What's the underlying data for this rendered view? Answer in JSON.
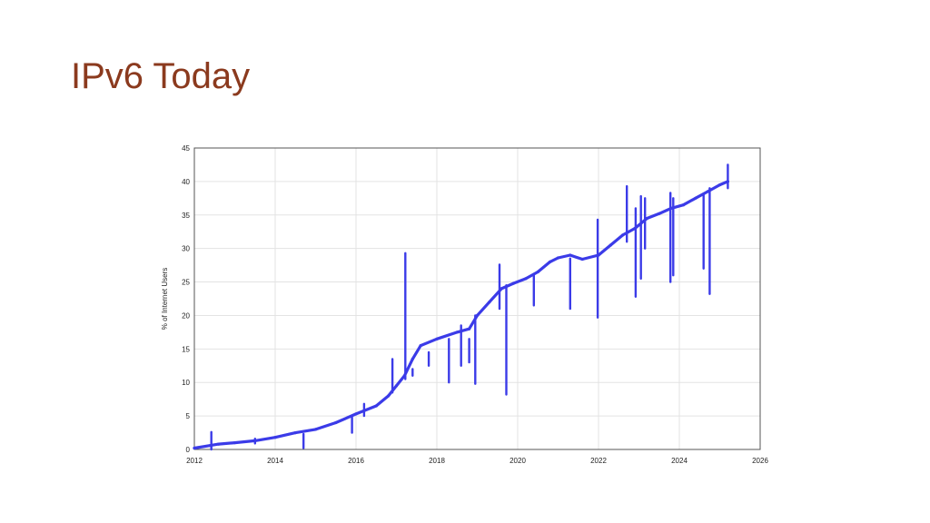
{
  "slide": {
    "title": "IPv6 Today"
  },
  "chart_data": {
    "type": "line",
    "title": "",
    "xlabel": "",
    "ylabel": "% of Internet Users",
    "xlim": [
      2012,
      2026
    ],
    "ylim": [
      0,
      45
    ],
    "xticks": [
      "2012",
      "2014",
      "2016",
      "2018",
      "2020",
      "2022",
      "2024",
      "2026"
    ],
    "yticks": [
      "0",
      "5",
      "10",
      "15",
      "20",
      "25",
      "30",
      "35",
      "40",
      "45"
    ],
    "grid": true,
    "line_color": "#3b3be8",
    "series": [
      {
        "name": "",
        "points": [
          [
            2012.0,
            0.2
          ],
          [
            2012.4,
            0.6
          ],
          [
            2012.6,
            0.8
          ],
          [
            2013.0,
            1.0
          ],
          [
            2013.5,
            1.3
          ],
          [
            2014.0,
            1.8
          ],
          [
            2014.5,
            2.5
          ],
          [
            2015.0,
            3.0
          ],
          [
            2015.5,
            4.0
          ],
          [
            2016.0,
            5.3
          ],
          [
            2016.5,
            6.5
          ],
          [
            2016.8,
            8.0
          ],
          [
            2017.0,
            9.5
          ],
          [
            2017.2,
            11.0
          ],
          [
            2017.4,
            13.5
          ],
          [
            2017.6,
            15.5
          ],
          [
            2018.0,
            16.5
          ],
          [
            2018.5,
            17.5
          ],
          [
            2018.8,
            18.0
          ],
          [
            2019.0,
            20.0
          ],
          [
            2019.3,
            22.0
          ],
          [
            2019.6,
            24.0
          ],
          [
            2019.9,
            24.8
          ],
          [
            2020.2,
            25.5
          ],
          [
            2020.5,
            26.5
          ],
          [
            2020.8,
            28.0
          ],
          [
            2021.0,
            28.6
          ],
          [
            2021.3,
            29.0
          ],
          [
            2021.6,
            28.4
          ],
          [
            2022.0,
            29.0
          ],
          [
            2022.3,
            30.5
          ],
          [
            2022.6,
            32.0
          ],
          [
            2022.9,
            33.0
          ],
          [
            2023.2,
            34.5
          ],
          [
            2023.5,
            35.2
          ],
          [
            2023.8,
            36.0
          ],
          [
            2024.1,
            36.5
          ],
          [
            2024.4,
            37.5
          ],
          [
            2024.7,
            38.5
          ],
          [
            2025.0,
            39.5
          ],
          [
            2025.2,
            40.0
          ]
        ],
        "spikes": [
          [
            2012.42,
            2.6,
            0.0
          ],
          [
            2013.5,
            1.6,
            0.9
          ],
          [
            2014.7,
            2.3,
            0.2
          ],
          [
            2015.9,
            4.8,
            2.5
          ],
          [
            2016.2,
            6.8,
            5.0
          ],
          [
            2016.9,
            13.5,
            8.5
          ],
          [
            2017.22,
            29.3,
            10.5
          ],
          [
            2017.4,
            12.0,
            11.0
          ],
          [
            2017.8,
            14.5,
            12.5
          ],
          [
            2018.3,
            16.5,
            10.0
          ],
          [
            2018.6,
            18.5,
            12.5
          ],
          [
            2018.8,
            16.5,
            13.0
          ],
          [
            2018.95,
            20.0,
            9.8
          ],
          [
            2019.55,
            27.6,
            21.0
          ],
          [
            2019.72,
            24.5,
            8.2
          ],
          [
            2020.4,
            26.0,
            21.5
          ],
          [
            2021.3,
            28.5,
            21.0
          ],
          [
            2021.98,
            34.3,
            19.7
          ],
          [
            2022.7,
            39.3,
            31.0
          ],
          [
            2022.92,
            36.0,
            22.8
          ],
          [
            2023.05,
            37.8,
            25.5
          ],
          [
            2023.15,
            37.5,
            30.0
          ],
          [
            2023.78,
            38.3,
            25.0
          ],
          [
            2023.85,
            37.5,
            26.0
          ],
          [
            2024.6,
            38.0,
            27.0
          ],
          [
            2024.75,
            39.0,
            23.2
          ],
          [
            2025.2,
            42.5,
            39.0
          ]
        ]
      }
    ]
  }
}
